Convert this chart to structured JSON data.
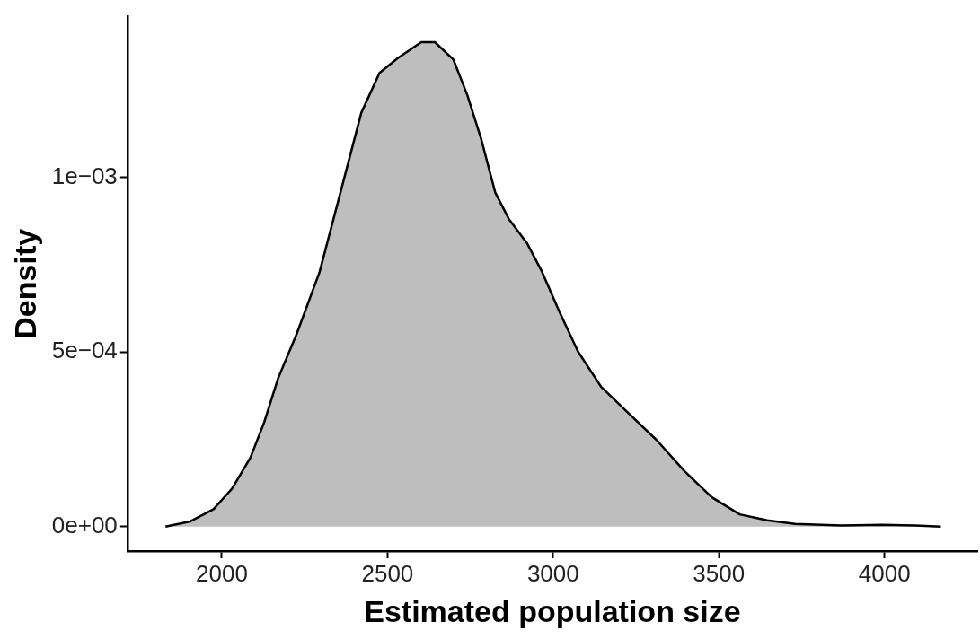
{
  "chart_data": {
    "type": "area",
    "xlabel": "Estimated population size",
    "ylabel": "Density",
    "x": [
      1830,
      1905,
      1975,
      2031,
      2086,
      2128,
      2170,
      2226,
      2295,
      2365,
      2421,
      2476,
      2532,
      2602,
      2643,
      2699,
      2741,
      2783,
      2825,
      2866,
      2922,
      2964,
      3019,
      3075,
      3145,
      3228,
      3312,
      3396,
      3479,
      3563,
      3646,
      3730,
      3869,
      3994,
      4092,
      4170
    ],
    "series": [
      {
        "color": "#bebebe",
        "values": [
          0,
          1.5e-05,
          5e-05,
          0.000109,
          0.000197,
          0.000299,
          0.000425,
          0.000552,
          0.000729,
          0.000982,
          0.001185,
          0.001299,
          0.001342,
          0.001387,
          0.001387,
          0.001337,
          0.001235,
          0.001109,
          0.000957,
          0.000881,
          0.00081,
          0.000734,
          0.000615,
          0.000501,
          0.0004,
          0.000324,
          0.000248,
          0.000159,
          8.4e-05,
          3.5e-05,
          1.8e-05,
          8e-06,
          3e-06,
          5e-06,
          3e-06,
          0
        ]
      }
    ],
    "xlim": [
      1715,
      4280
    ],
    "xticks": [
      2000,
      2500,
      3000,
      3500,
      4000
    ],
    "ylim": [
      -7e-05,
      0.00146
    ],
    "yticks": [
      {
        "value": 0,
        "label": "0e+00"
      },
      {
        "value": 0.0005,
        "label": "5e−04"
      },
      {
        "value": 0.001,
        "label": "1e−03"
      }
    ]
  }
}
